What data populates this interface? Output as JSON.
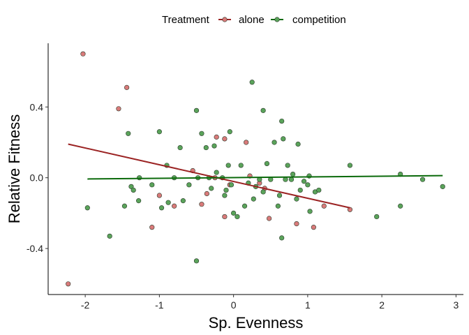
{
  "chart_data": {
    "type": "scatter",
    "xlabel": "Sp. Evenness",
    "ylabel": "Relative Fitness",
    "xlim": [
      -2.5,
      3.1
    ],
    "ylim": [
      -0.66,
      0.76
    ],
    "x_ticks": [
      -2,
      -1,
      0,
      1,
      2,
      3
    ],
    "x_tick_labels": [
      "-2",
      "-1",
      "0",
      "1",
      "2",
      "3"
    ],
    "y_ticks": [
      -0.4,
      0.0,
      0.4
    ],
    "y_tick_labels": [
      "-0.4",
      "0.0",
      "0.4"
    ],
    "grid": false,
    "legend": {
      "title": "Treatment",
      "position": "top",
      "entries": [
        "alone",
        "competition"
      ]
    },
    "series": [
      {
        "name": "alone",
        "color": "#d97a7a",
        "line_color": "#9b2323",
        "points": [
          {
            "x": -2.23,
            "y": -0.6
          },
          {
            "x": -2.03,
            "y": 0.7
          },
          {
            "x": -1.55,
            "y": 0.39
          },
          {
            "x": -1.44,
            "y": 0.51
          },
          {
            "x": -1.1,
            "y": -0.28
          },
          {
            "x": -1.0,
            "y": -0.1
          },
          {
            "x": -0.8,
            "y": -0.16
          },
          {
            "x": -0.55,
            "y": 0.04
          },
          {
            "x": -0.43,
            "y": -0.15
          },
          {
            "x": -0.36,
            "y": -0.09
          },
          {
            "x": -0.25,
            "y": 0.0
          },
          {
            "x": -0.23,
            "y": 0.23
          },
          {
            "x": -0.12,
            "y": -0.22
          },
          {
            "x": -0.12,
            "y": 0.22
          },
          {
            "x": -0.05,
            "y": -0.04
          },
          {
            "x": 0.17,
            "y": 0.2
          },
          {
            "x": 0.22,
            "y": 0.01
          },
          {
            "x": 0.35,
            "y": -0.03
          },
          {
            "x": 0.42,
            "y": -0.06
          },
          {
            "x": 0.48,
            "y": -0.23
          },
          {
            "x": 0.85,
            "y": -0.26
          },
          {
            "x": 1.08,
            "y": -0.28
          },
          {
            "x": 1.22,
            "y": -0.16
          },
          {
            "x": 1.57,
            "y": -0.18
          }
        ],
        "trend": [
          {
            "x": -2.23,
            "y": 0.19
          },
          {
            "x": 1.57,
            "y": -0.17
          }
        ]
      },
      {
        "name": "competition",
        "color": "#5aa35a",
        "line_color": "#0b6a0b",
        "points": [
          {
            "x": -1.97,
            "y": -0.17
          },
          {
            "x": -1.67,
            "y": -0.33
          },
          {
            "x": -1.47,
            "y": -0.16
          },
          {
            "x": -1.42,
            "y": 0.25
          },
          {
            "x": -1.38,
            "y": -0.05
          },
          {
            "x": -1.35,
            "y": -0.07
          },
          {
            "x": -1.28,
            "y": -0.13
          },
          {
            "x": -1.27,
            "y": 0.0
          },
          {
            "x": -1.1,
            "y": -0.04
          },
          {
            "x": -1.0,
            "y": 0.26
          },
          {
            "x": -0.97,
            "y": -0.17
          },
          {
            "x": -0.9,
            "y": 0.07
          },
          {
            "x": -0.88,
            "y": -0.14
          },
          {
            "x": -0.8,
            "y": 0.0
          },
          {
            "x": -0.72,
            "y": 0.17
          },
          {
            "x": -0.68,
            "y": -0.13
          },
          {
            "x": -0.6,
            "y": -0.04
          },
          {
            "x": -0.5,
            "y": -0.47
          },
          {
            "x": -0.5,
            "y": 0.38
          },
          {
            "x": -0.48,
            "y": 0.0
          },
          {
            "x": -0.43,
            "y": 0.25
          },
          {
            "x": -0.37,
            "y": 0.17
          },
          {
            "x": -0.33,
            "y": 0.0
          },
          {
            "x": -0.3,
            "y": -0.06
          },
          {
            "x": -0.26,
            "y": 0.18
          },
          {
            "x": -0.23,
            "y": 0.03
          },
          {
            "x": -0.15,
            "y": 0.0
          },
          {
            "x": -0.12,
            "y": -0.1
          },
          {
            "x": -0.1,
            "y": -0.07
          },
          {
            "x": -0.07,
            "y": 0.07
          },
          {
            "x": -0.05,
            "y": 0.26
          },
          {
            "x": -0.03,
            "y": -0.04
          },
          {
            "x": 0.0,
            "y": -0.2
          },
          {
            "x": 0.05,
            "y": -0.22
          },
          {
            "x": 0.1,
            "y": 0.07
          },
          {
            "x": 0.15,
            "y": -0.16
          },
          {
            "x": 0.2,
            "y": -0.03
          },
          {
            "x": 0.25,
            "y": 0.54
          },
          {
            "x": 0.27,
            "y": -0.12
          },
          {
            "x": 0.3,
            "y": -0.05
          },
          {
            "x": 0.35,
            "y": -0.01
          },
          {
            "x": 0.4,
            "y": 0.38
          },
          {
            "x": 0.4,
            "y": -0.08
          },
          {
            "x": 0.45,
            "y": 0.08
          },
          {
            "x": 0.5,
            "y": -0.01
          },
          {
            "x": 0.55,
            "y": 0.2
          },
          {
            "x": 0.6,
            "y": -0.16
          },
          {
            "x": 0.62,
            "y": -0.1
          },
          {
            "x": 0.65,
            "y": 0.32
          },
          {
            "x": 0.65,
            "y": -0.34
          },
          {
            "x": 0.67,
            "y": 0.22
          },
          {
            "x": 0.7,
            "y": -0.01
          },
          {
            "x": 0.73,
            "y": 0.07
          },
          {
            "x": 0.78,
            "y": -0.01
          },
          {
            "x": 0.8,
            "y": 0.02
          },
          {
            "x": 0.85,
            "y": -0.12
          },
          {
            "x": 0.87,
            "y": 0.19
          },
          {
            "x": 0.9,
            "y": -0.07
          },
          {
            "x": 0.95,
            "y": -0.02
          },
          {
            "x": 1.0,
            "y": -0.04
          },
          {
            "x": 1.02,
            "y": 0.01
          },
          {
            "x": 1.03,
            "y": -0.19
          },
          {
            "x": 1.1,
            "y": -0.08
          },
          {
            "x": 1.15,
            "y": -0.07
          },
          {
            "x": 1.57,
            "y": 0.07
          },
          {
            "x": 1.93,
            "y": -0.22
          },
          {
            "x": 2.25,
            "y": 0.02
          },
          {
            "x": 2.25,
            "y": -0.16
          },
          {
            "x": 2.55,
            "y": -0.01
          },
          {
            "x": 2.82,
            "y": -0.05
          }
        ],
        "trend": [
          {
            "x": -1.97,
            "y": -0.007
          },
          {
            "x": 2.82,
            "y": 0.012
          }
        ]
      }
    ]
  }
}
